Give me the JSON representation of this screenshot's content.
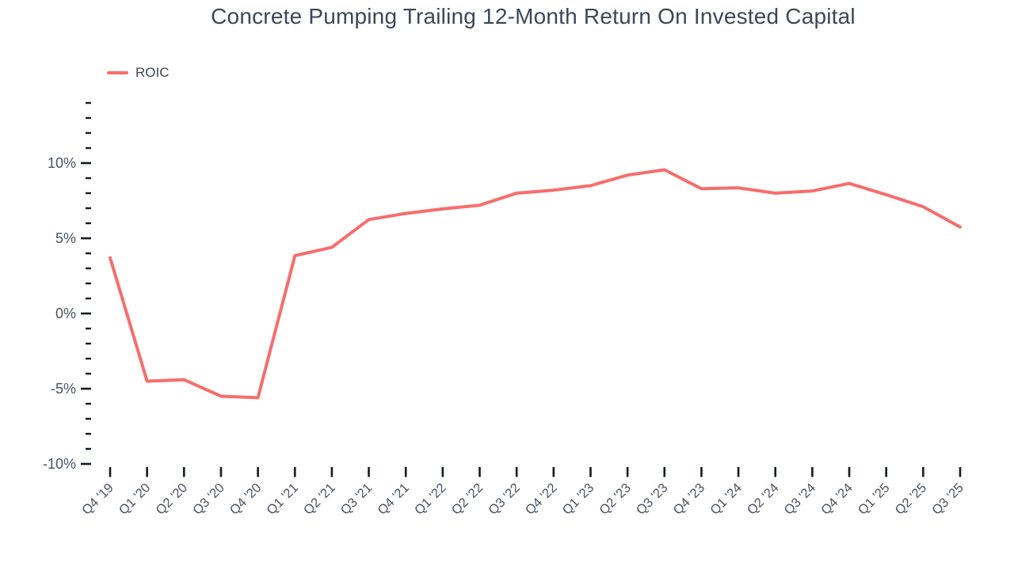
{
  "title": "Concrete Pumping Trailing 12-Month Return On Invested Capital",
  "legend": {
    "label": "ROIC"
  },
  "colors": {
    "line": "#f76d6d",
    "tick": "#141a21",
    "axis_label_text": "#4a5565",
    "title_text": "#3d4757"
  },
  "chart_data": {
    "type": "line",
    "title": "Concrete Pumping Trailing 12-Month Return On Invested Capital",
    "xlabel": "",
    "ylabel": "",
    "grid": false,
    "legend_position": "top-left",
    "categories": [
      "Q4 '19",
      "Q1 '20",
      "Q2 '20",
      "Q3 '20",
      "Q4 '20",
      "Q1 '21",
      "Q2 '21",
      "Q3 '21",
      "Q4 '21",
      "Q1 '22",
      "Q2 '22",
      "Q3 '22",
      "Q4 '22",
      "Q1 '23",
      "Q2 '23",
      "Q3 '23",
      "Q4 '23",
      "Q1 '24",
      "Q2 '24",
      "Q3 '24",
      "Q4 '24",
      "Q1 '25",
      "Q2 '25",
      "Q3 '25"
    ],
    "series": [
      {
        "name": "ROIC",
        "unit": "%",
        "values": [
          3.7,
          -4.5,
          -4.4,
          -5.5,
          -5.6,
          3.85,
          4.4,
          6.25,
          6.65,
          6.95,
          7.2,
          8.0,
          8.2,
          8.5,
          9.2,
          9.55,
          8.3,
          8.35,
          8.0,
          8.15,
          8.65,
          7.9,
          7.1,
          5.75
        ]
      }
    ],
    "y_axis": {
      "min": -10,
      "max": 14,
      "minor_step": 1,
      "major_step": 5,
      "major_ticks": [
        {
          "value": -10,
          "label": "-10%"
        },
        {
          "value": -5,
          "label": "-5%"
        },
        {
          "value": 0,
          "label": "0%"
        },
        {
          "value": 5,
          "label": "5%"
        },
        {
          "value": 10,
          "label": "10%"
        }
      ]
    }
  }
}
